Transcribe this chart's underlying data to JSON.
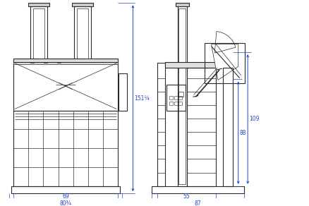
{
  "bg_color": "#ffffff",
  "line_color": "#2a2a2a",
  "dim_color": "#2244cc",
  "dim_labels": {
    "left_height": "151¼",
    "left_width_inner": "69",
    "left_width_outer": "80¾",
    "right_height_outer": "109",
    "right_height_inner": "88",
    "right_width_inner": "55",
    "right_width_outer": "87"
  }
}
